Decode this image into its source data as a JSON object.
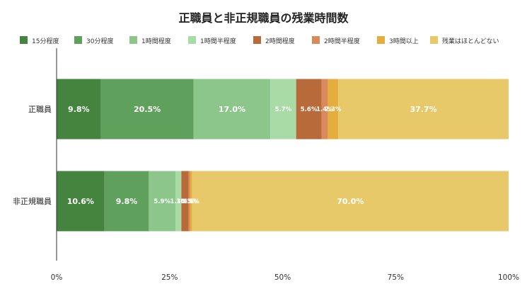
{
  "chart_data": {
    "type": "bar",
    "orientation": "horizontal",
    "stacked": "percent",
    "title": "正職員と非正規職員の残業時間数",
    "categories": [
      "正職員",
      "非正規職員"
    ],
    "series": [
      {
        "name": "15分程度",
        "values": [
          9.8,
          10.6
        ],
        "labels": [
          "9.8%",
          "10.6%"
        ],
        "color": "#44843f"
      },
      {
        "name": "30分程度",
        "values": [
          20.5,
          9.8
        ],
        "labels": [
          "20.5%",
          "9.8%"
        ],
        "color": "#5fa05d"
      },
      {
        "name": "1時間程度",
        "values": [
          17.0,
          5.9
        ],
        "labels": [
          "17.0%",
          "5.9%"
        ],
        "color": "#8cc68b"
      },
      {
        "name": "1時間半程度",
        "values": [
          5.7,
          1.3
        ],
        "labels": [
          "5.7%",
          "1.3%"
        ],
        "color": "#a8dba5"
      },
      {
        "name": "2時間程度",
        "values": [
          5.6,
          1.6
        ],
        "labels": [
          "5.6%",
          "1.6%"
        ],
        "color": "#b96a3a"
      },
      {
        "name": "2時間半程度",
        "values": [
          1.4,
          0.3
        ],
        "labels": [
          "1.4%",
          "0.3%"
        ],
        "color": "#d9895a"
      },
      {
        "name": "3時間以上",
        "values": [
          2.3,
          0.5
        ],
        "labels": [
          "2.3%",
          "0.5%"
        ],
        "color": "#e5ad3e"
      },
      {
        "name": "残業はほとんどない",
        "values": [
          37.7,
          70.0
        ],
        "labels": [
          "37.7%",
          "70.0%"
        ],
        "color": "#e8c96a"
      }
    ],
    "xlim": [
      0,
      100
    ],
    "x_ticks": [
      "0%",
      "25%",
      "50%",
      "75%",
      "100%"
    ],
    "legend": "top",
    "grid": false
  }
}
